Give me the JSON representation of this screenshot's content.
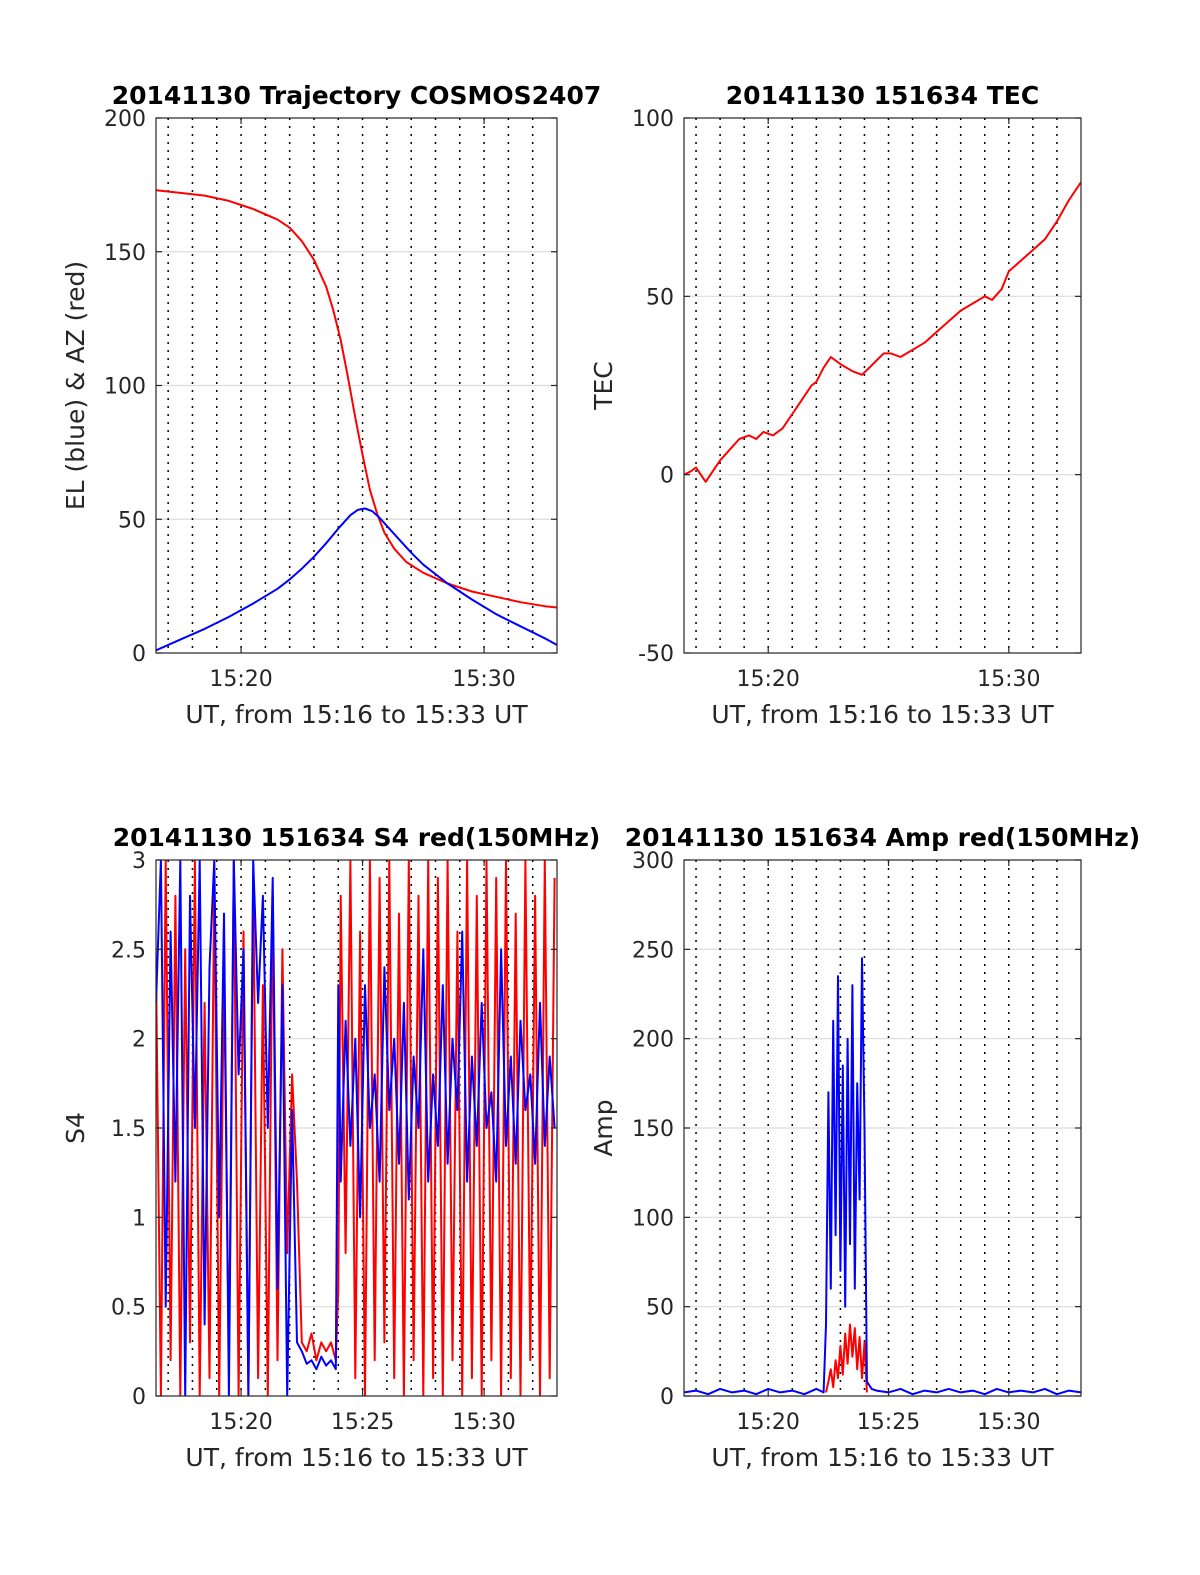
{
  "figure": {
    "background": "#ffffff"
  },
  "chart_data": [
    {
      "id": "trajectory",
      "type": "line",
      "title": "20141130 Trajectory COSMOS2407",
      "xlabel": "UT, from 15:16 to 15:33 UT",
      "ylabel": "EL (blue) & AZ (red)",
      "xlim": [
        16.5,
        33
      ],
      "ylim": [
        0,
        200
      ],
      "xticks": [
        20,
        30
      ],
      "xtick_labels": [
        "15:20",
        "15:30"
      ],
      "yticks": [
        0,
        50,
        100,
        150,
        200
      ],
      "ytick_labels": [
        "0",
        "50",
        "100",
        "150",
        "200"
      ],
      "minute_grid": [
        17,
        18,
        19,
        20,
        21,
        22,
        23,
        24,
        25,
        26,
        27,
        28,
        29,
        30,
        31,
        32
      ],
      "grid": true,
      "series": [
        {
          "color": "#ff0000",
          "x": [
            16.5,
            17.5,
            18.5,
            19.5,
            20.5,
            21.5,
            22.0,
            22.5,
            23.0,
            23.5,
            23.8,
            24.1,
            24.4,
            24.7,
            25.0,
            25.3,
            25.6,
            25.9,
            26.3,
            26.8,
            27.5,
            28.5,
            29.5,
            30.5,
            31.5,
            32.5,
            33.0
          ],
          "y": [
            173,
            172,
            171,
            169,
            166,
            162,
            159,
            154,
            147,
            137,
            128,
            117,
            103,
            88,
            74,
            61,
            52,
            45,
            39,
            34,
            30,
            26,
            23,
            21,
            19,
            17.5,
            17
          ]
        },
        {
          "color": "#0000ff",
          "x": [
            16.5,
            17.5,
            18.5,
            19.5,
            20.5,
            21.5,
            22.0,
            22.5,
            23.0,
            23.5,
            24.0,
            24.5,
            24.8,
            25.1,
            25.4,
            25.7,
            26.0,
            26.5,
            27.0,
            27.5,
            28.5,
            29.5,
            30.5,
            31.5,
            32.5,
            33.0
          ],
          "y": [
            1,
            5,
            9,
            13.5,
            18.5,
            24,
            27.5,
            31.5,
            36,
            41,
            46.5,
            51.5,
            53.5,
            54,
            53,
            50.5,
            47.5,
            42.5,
            37.5,
            33,
            26,
            20,
            14.5,
            10,
            5.5,
            3
          ]
        }
      ]
    },
    {
      "id": "tec",
      "type": "line",
      "title": "20141130 151634 TEC",
      "xlabel": "UT, from 15:16 to 15:33 UT",
      "ylabel": "TEC",
      "xlim": [
        16.5,
        33
      ],
      "ylim": [
        -50,
        100
      ],
      "xticks": [
        20,
        30
      ],
      "xtick_labels": [
        "15:20",
        "15:30"
      ],
      "yticks": [
        -50,
        0,
        50,
        100
      ],
      "ytick_labels": [
        "-50",
        "0",
        "50",
        "100"
      ],
      "minute_grid": [
        17,
        18,
        19,
        20,
        21,
        22,
        23,
        24,
        25,
        26,
        27,
        28,
        29,
        30,
        31,
        32
      ],
      "grid": true,
      "series": [
        {
          "color": "#ff0000",
          "x": [
            16.5,
            16.8,
            17.0,
            17.2,
            17.4,
            17.7,
            18.0,
            18.4,
            18.8,
            19.2,
            19.5,
            19.8,
            20.2,
            20.6,
            21.0,
            21.4,
            21.8,
            22.0,
            22.3,
            22.6,
            23.0,
            23.5,
            23.9,
            24.2,
            24.5,
            24.8,
            25.1,
            25.5,
            26.0,
            26.5,
            27.0,
            27.5,
            28.0,
            28.5,
            29.0,
            29.3,
            29.7,
            30.0,
            30.5,
            31.0,
            31.5,
            32.0,
            32.5,
            33.0
          ],
          "y": [
            0,
            1,
            2,
            0,
            -2,
            1,
            4,
            7,
            10,
            11,
            10,
            12,
            11,
            13,
            17,
            21,
            25,
            26,
            30,
            33,
            31,
            29,
            28,
            30,
            32,
            34,
            34,
            33,
            35,
            37,
            40,
            43,
            46,
            48,
            50,
            49,
            52,
            57,
            60,
            63,
            66,
            71,
            77,
            82
          ]
        }
      ]
    },
    {
      "id": "s4",
      "type": "line",
      "title": "20141130 151634 S4 red(150MHz)",
      "xlabel": "UT, from 15:16 to 15:33 UT",
      "ylabel": "S4",
      "xlim": [
        16.5,
        33
      ],
      "ylim": [
        0,
        3
      ],
      "xticks": [
        20,
        25,
        30
      ],
      "xtick_labels": [
        "15:20",
        "15:25",
        "15:30"
      ],
      "yticks": [
        0,
        0.5,
        1,
        1.5,
        2,
        2.5,
        3
      ],
      "ytick_labels": [
        "0",
        "0.5",
        "1",
        "1.5",
        "2",
        "2.5",
        "3"
      ],
      "minute_grid": [
        17,
        18,
        19,
        20,
        21,
        22,
        23,
        24,
        25,
        26,
        27,
        28,
        29,
        30,
        31,
        32
      ],
      "grid": true,
      "series": [
        {
          "color": "#ff0000",
          "x": [
            16.5,
            16.7,
            16.9,
            17.1,
            17.3,
            17.5,
            17.7,
            17.9,
            18.1,
            18.3,
            18.5,
            18.7,
            18.9,
            19.1,
            19.3,
            19.5,
            19.7,
            19.9,
            20.1,
            20.3,
            20.5,
            20.7,
            20.9,
            21.1,
            21.3,
            21.5,
            21.7,
            21.9,
            22.1,
            22.3,
            22.5,
            22.7,
            22.9,
            23.1,
            23.3,
            23.5,
            23.7,
            23.9,
            24.0,
            24.1,
            24.3,
            24.5,
            24.7,
            24.9,
            25.1,
            25.3,
            25.5,
            25.7,
            25.9,
            26.1,
            26.3,
            26.5,
            26.7,
            26.9,
            27.1,
            27.3,
            27.5,
            27.7,
            27.9,
            28.1,
            28.3,
            28.5,
            28.7,
            28.9,
            29.1,
            29.3,
            29.5,
            29.7,
            29.9,
            30.1,
            30.3,
            30.5,
            30.7,
            30.9,
            31.1,
            31.3,
            31.5,
            31.7,
            31.9,
            32.1,
            32.3,
            32.5,
            32.7,
            32.9
          ],
          "y": [
            2.4,
            0,
            3,
            0.2,
            2.8,
            0,
            2.5,
            0.3,
            3,
            0,
            2.2,
            0.1,
            2.9,
            0,
            2.4,
            0.2,
            3,
            0,
            2.6,
            0,
            2.9,
            0.1,
            2.3,
            0,
            2.8,
            0.2,
            2.5,
            0.8,
            1.8,
            1.2,
            0.3,
            0.25,
            0.35,
            0.2,
            0.3,
            0.25,
            0.3,
            0.2,
            0.6,
            2.8,
            0.8,
            3,
            0.1,
            2.6,
            0,
            3,
            0.2,
            2.9,
            0.3,
            3,
            0.1,
            2.7,
            0,
            3,
            0.2,
            2.8,
            0,
            3,
            0.1,
            2.9,
            0,
            3,
            0.2,
            2.6,
            0,
            3,
            0.1,
            2.8,
            0,
            3,
            0.2,
            2.9,
            0,
            3,
            0.1,
            2.7,
            0,
            3,
            0.2,
            2.8,
            0,
            3,
            0.1,
            2.9
          ]
        },
        {
          "color": "#0000ff",
          "x": [
            16.5,
            16.7,
            16.9,
            17.1,
            17.3,
            17.5,
            17.7,
            17.9,
            18.1,
            18.3,
            18.5,
            18.7,
            18.9,
            19.1,
            19.3,
            19.5,
            19.7,
            19.9,
            20.1,
            20.3,
            20.5,
            20.7,
            20.9,
            21.1,
            21.3,
            21.5,
            21.7,
            21.9,
            22.1,
            22.3,
            22.5,
            22.7,
            22.9,
            23.1,
            23.3,
            23.5,
            23.7,
            23.9,
            24.0,
            24.1,
            24.3,
            24.5,
            24.7,
            24.9,
            25.1,
            25.3,
            25.5,
            25.7,
            25.9,
            26.1,
            26.3,
            26.5,
            26.7,
            26.9,
            27.1,
            27.3,
            27.5,
            27.7,
            27.9,
            28.1,
            28.3,
            28.5,
            28.7,
            28.9,
            29.1,
            29.3,
            29.5,
            29.7,
            29.9,
            30.1,
            30.3,
            30.5,
            30.7,
            30.9,
            31.1,
            31.3,
            31.5,
            31.7,
            31.9,
            32.1,
            32.3,
            32.5,
            32.7,
            32.9
          ],
          "y": [
            2.2,
            3,
            0.5,
            2.6,
            1.2,
            3,
            0,
            2.8,
            1.5,
            3,
            0.4,
            2.4,
            3,
            1.0,
            2.7,
            0,
            3,
            1.8,
            2.5,
            0,
            3,
            2.2,
            2.8,
            1.5,
            2.9,
            0.6,
            2.3,
            0,
            1.6,
            0.3,
            0.25,
            0.18,
            0.2,
            0.15,
            0.22,
            0.17,
            0.2,
            0.15,
            2.3,
            1.2,
            2.1,
            1.4,
            2.0,
            1.0,
            2.3,
            1.5,
            1.8,
            1.2,
            2.4,
            1.6,
            2.0,
            1.3,
            2.2,
            1.1,
            1.9,
            1.5,
            2.5,
            1.2,
            1.8,
            1.4,
            2.3,
            1.3,
            2.0,
            1.6,
            2.6,
            1.2,
            1.9,
            1.4,
            2.2,
            1.5,
            1.7,
            1.2,
            2.5,
            1.4,
            1.9,
            1.3,
            2.1,
            1.6,
            1.8,
            1.3,
            2.2,
            1.4,
            1.9,
            1.5
          ]
        }
      ]
    },
    {
      "id": "amp",
      "type": "line",
      "title": "20141130 151634 Amp red(150MHz)",
      "xlabel": "UT, from 15:16 to 15:33 UT",
      "ylabel": "Amp",
      "xlim": [
        16.5,
        33
      ],
      "ylim": [
        0,
        300
      ],
      "xticks": [
        20,
        25,
        30
      ],
      "xtick_labels": [
        "15:20",
        "15:25",
        "15:30"
      ],
      "yticks": [
        0,
        50,
        100,
        150,
        200,
        250,
        300
      ],
      "ytick_labels": [
        "0",
        "50",
        "100",
        "150",
        "200",
        "250",
        "300"
      ],
      "minute_grid": [
        17,
        18,
        19,
        20,
        21,
        22,
        23,
        24,
        25,
        26,
        27,
        28,
        29,
        30,
        31,
        32
      ],
      "grid": true,
      "series": [
        {
          "color": "#ff0000",
          "x": [
            22.4,
            22.5,
            22.6,
            22.7,
            22.8,
            22.9,
            23.0,
            23.1,
            23.2,
            23.3,
            23.4,
            23.5,
            23.6,
            23.7,
            23.8,
            23.9,
            24.0,
            24.1
          ],
          "y": [
            2,
            8,
            15,
            5,
            20,
            10,
            28,
            12,
            35,
            18,
            40,
            22,
            38,
            15,
            33,
            10,
            30,
            2
          ]
        },
        {
          "color": "#0000ff",
          "x": [
            16.5,
            17.0,
            17.5,
            18.0,
            18.5,
            19.0,
            19.5,
            20.0,
            20.5,
            21.0,
            21.5,
            22.0,
            22.3,
            22.4,
            22.5,
            22.6,
            22.7,
            22.8,
            22.9,
            23.0,
            23.1,
            23.2,
            23.3,
            23.4,
            23.5,
            23.6,
            23.7,
            23.8,
            23.9,
            24.0,
            24.1,
            24.3,
            24.5,
            25.0,
            25.5,
            26.0,
            26.5,
            27.0,
            27.5,
            28.0,
            28.5,
            29.0,
            29.5,
            30.0,
            30.5,
            31.0,
            31.5,
            32.0,
            32.5,
            33.0
          ],
          "y": [
            2,
            3,
            1,
            4,
            2,
            3,
            1,
            4,
            2,
            3,
            1,
            4,
            2,
            40,
            170,
            60,
            210,
            90,
            235,
            70,
            185,
            50,
            200,
            85,
            230,
            60,
            175,
            110,
            245,
            150,
            8,
            4,
            3,
            2,
            4,
            1,
            3,
            2,
            4,
            2,
            3,
            1,
            4,
            2,
            3,
            2,
            4,
            1,
            3,
            2
          ]
        }
      ]
    }
  ]
}
